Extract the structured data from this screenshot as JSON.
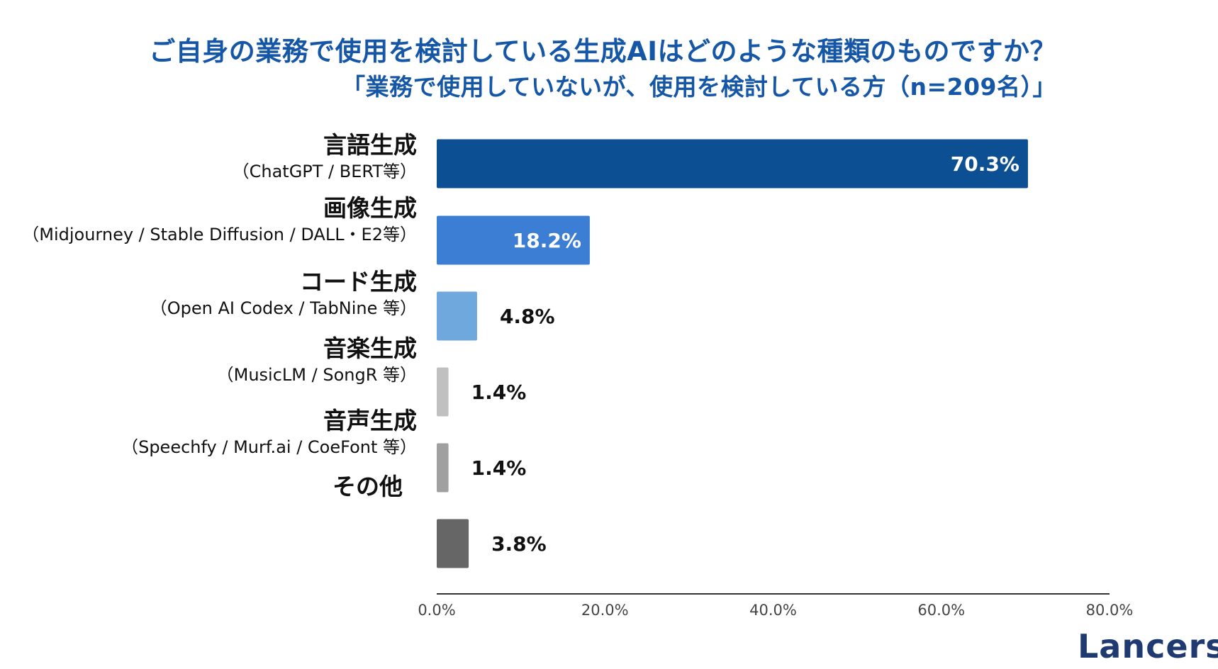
{
  "title": {
    "main": "ご自身の業務で使用を検討している生成AIはどのような種類のものですか？",
    "sub": "「業務で使用していないが、使用を検討している方（n=209名）」"
  },
  "categories": [
    {
      "name": "言語生成",
      "examples": "（ChatGPT / BERT等）"
    },
    {
      "name": "画像生成",
      "examples": "（Midjourney / Stable Diffusion / DALL・E2等）"
    },
    {
      "name": "コード生成",
      "examples": "（Open AI Codex / TabNine 等）"
    },
    {
      "name": "音楽生成",
      "examples": "（MusicLM / SongR 等）"
    },
    {
      "name": "音声生成",
      "examples": "（Speechfy / Murf.ai / CoeFont 等）"
    },
    {
      "name": "その他",
      "examples": ""
    }
  ],
  "chart_data": {
    "type": "bar",
    "orientation": "horizontal",
    "categories": [
      "言語生成",
      "画像生成",
      "コード生成",
      "音楽生成",
      "音声生成",
      "その他"
    ],
    "values": [
      70.3,
      18.2,
      4.8,
      1.4,
      1.4,
      3.8
    ],
    "value_labels": [
      "70.3%",
      "18.2%",
      "4.8%",
      "1.4%",
      "1.4%",
      "3.8%"
    ],
    "bar_colors": [
      "#0d4f93",
      "#3b7ed4",
      "#6fa8dc",
      "#c0c0c0",
      "#a0a0a0",
      "#666666"
    ],
    "xlim": [
      0,
      80
    ],
    "xticks": [
      0,
      20,
      40,
      60,
      80
    ],
    "xtick_labels": [
      "0.0%",
      "20.0%",
      "40.0%",
      "60.0%",
      "80.0%"
    ],
    "title": "ご自身の業務で使用を検討している生成AIはどのような種類のものですか？",
    "subtitle": "「業務で使用していないが、使用を検討している方（n=209名）」",
    "xlabel": "",
    "ylabel": "",
    "grid": false
  },
  "logo": {
    "text": "Lancers"
  }
}
